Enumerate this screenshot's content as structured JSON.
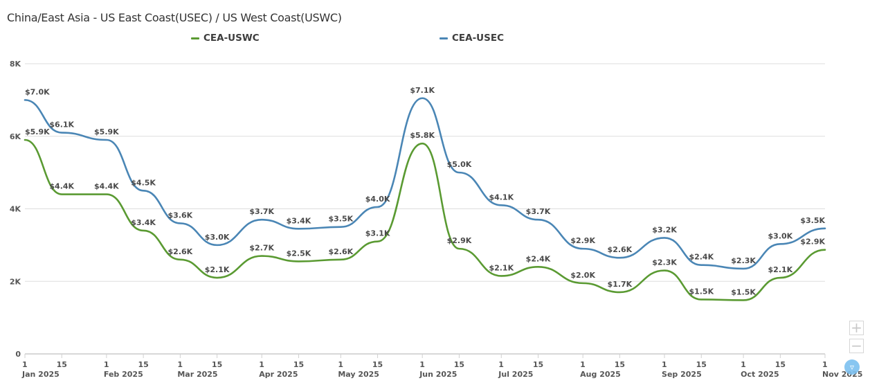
{
  "chart_data": {
    "type": "line",
    "title": "China/East Asia - US East Coast(USEC) / US West Coast(USWC)",
    "xlabel": "",
    "ylabel": "",
    "ylim": [
      0,
      8000
    ],
    "y_ticks": [
      0,
      2000,
      4000,
      6000,
      8000
    ],
    "y_tick_labels": [
      "0",
      "2K",
      "4K",
      "6K",
      "8K"
    ],
    "grid": true,
    "legend_position": "top-center",
    "x": [
      "2025-01-01",
      "2025-01-15",
      "2025-02-01",
      "2025-02-15",
      "2025-03-01",
      "2025-03-15",
      "2025-04-01",
      "2025-04-15",
      "2025-05-01",
      "2025-05-15",
      "2025-06-01",
      "2025-06-15",
      "2025-07-01",
      "2025-07-15",
      "2025-08-01",
      "2025-08-15",
      "2025-09-01",
      "2025-09-15",
      "2025-10-01",
      "2025-10-15",
      "2025-11-01"
    ],
    "x_ticks": [
      {
        "date": "2025-01-01",
        "day": "1",
        "month": "Jan 2025"
      },
      {
        "date": "2025-01-15",
        "day": "15",
        "month": ""
      },
      {
        "date": "2025-02-01",
        "day": "1",
        "month": "Feb 2025"
      },
      {
        "date": "2025-02-15",
        "day": "15",
        "month": ""
      },
      {
        "date": "2025-03-01",
        "day": "1",
        "month": "Mar 2025"
      },
      {
        "date": "2025-03-15",
        "day": "15",
        "month": ""
      },
      {
        "date": "2025-04-01",
        "day": "1",
        "month": "Apr 2025"
      },
      {
        "date": "2025-04-15",
        "day": "15",
        "month": ""
      },
      {
        "date": "2025-05-01",
        "day": "1",
        "month": "May 2025"
      },
      {
        "date": "2025-05-15",
        "day": "15",
        "month": ""
      },
      {
        "date": "2025-06-01",
        "day": "1",
        "month": "Jun 2025"
      },
      {
        "date": "2025-06-15",
        "day": "15",
        "month": ""
      },
      {
        "date": "2025-07-01",
        "day": "1",
        "month": "Jul 2025"
      },
      {
        "date": "2025-07-15",
        "day": "15",
        "month": ""
      },
      {
        "date": "2025-08-01",
        "day": "1",
        "month": "Aug 2025"
      },
      {
        "date": "2025-08-15",
        "day": "15",
        "month": ""
      },
      {
        "date": "2025-09-01",
        "day": "1",
        "month": "Sep 2025"
      },
      {
        "date": "2025-09-15",
        "day": "15",
        "month": ""
      },
      {
        "date": "2025-10-01",
        "day": "1",
        "month": "Oct 2025"
      },
      {
        "date": "2025-10-15",
        "day": "15",
        "month": ""
      },
      {
        "date": "2025-11-01",
        "day": "1",
        "month": "Nov 2025"
      }
    ],
    "series": [
      {
        "name": "CEA-USWC",
        "color": "#5a9a32",
        "values": [
          5900,
          4400,
          4400,
          3400,
          2600,
          2100,
          2700,
          2550,
          2600,
          3100,
          5800,
          2900,
          2150,
          2400,
          1950,
          1700,
          2300,
          1500,
          1480,
          2100,
          2870
        ],
        "labels": [
          "$5.9K",
          "$4.4K",
          "$4.4K",
          "$3.4K",
          "$2.6K",
          "$2.1K",
          "$2.7K",
          "$2.5K",
          "$2.6K",
          "$3.1K",
          "$5.8K",
          "$2.9K",
          "$2.1K",
          "$2.4K",
          "$2.0K",
          "$1.7K",
          "$2.3K",
          "$1.5K",
          "$1.5K",
          "$2.1K",
          "$2.9K"
        ]
      },
      {
        "name": "CEA-USEC",
        "color": "#4a86b5",
        "values": [
          7000,
          6100,
          5900,
          4500,
          3600,
          3000,
          3700,
          3450,
          3500,
          4050,
          7050,
          5000,
          4100,
          3700,
          2900,
          2650,
          3200,
          2450,
          2350,
          3030,
          3460
        ],
        "labels": [
          "$7.0K",
          "$6.1K",
          "$5.9K",
          "$4.5K",
          "$3.6K",
          "$3.0K",
          "$3.7K",
          "$3.4K",
          "$3.5K",
          "$4.0K",
          "$7.1K",
          "$5.0K",
          "$4.1K",
          "$3.7K",
          "$2.9K",
          "$2.6K",
          "$3.2K",
          "$2.4K",
          "$2.3K",
          "$3.0K",
          "$3.5K"
        ]
      }
    ]
  },
  "controls": {
    "zoom_in": "+",
    "zoom_out": "−",
    "filter_icon": "filter-icon"
  }
}
